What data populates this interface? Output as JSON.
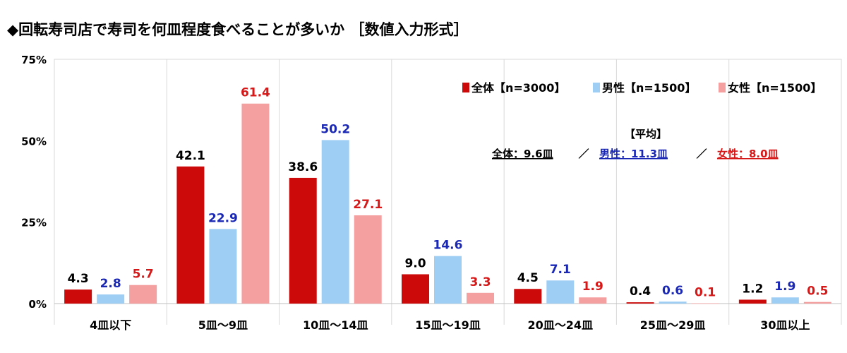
{
  "title": "◆回転寿司店で寿司を何皿程度食べることが多いか ［数値入力形式］",
  "chart_data": {
    "type": "bar",
    "categories": [
      "4皿以下",
      "5皿～9皿",
      "10皿～14皿",
      "15皿～19皿",
      "20皿～24皿",
      "25皿～29皿",
      "30皿以上"
    ],
    "series": [
      {
        "name": "全体【n=3000】",
        "color": "#cc0a0a",
        "label_color": "#000000",
        "values": [
          4.3,
          42.1,
          38.6,
          9.0,
          4.5,
          0.4,
          1.2
        ]
      },
      {
        "name": "男性【n=1500】",
        "color": "#9fcef5",
        "label_color": "#1a28b4",
        "values": [
          2.8,
          22.9,
          50.2,
          14.6,
          7.1,
          0.6,
          1.9
        ]
      },
      {
        "name": "女性【n=1500】",
        "color": "#f5a0a0",
        "label_color": "#d61818",
        "values": [
          5.7,
          61.4,
          27.1,
          3.3,
          1.9,
          0.1,
          0.5
        ]
      }
    ],
    "yticks": [
      "0%",
      "25%",
      "50%",
      "75%"
    ],
    "ylim": [
      0,
      75
    ],
    "grid": "vertical separators",
    "legend_position": "top-right"
  },
  "average": {
    "heading": "【平均】",
    "items": [
      {
        "text": "全体：9.6皿",
        "color": "#000000"
      },
      {
        "text": "男性：11.3皿",
        "color": "#1a28b4"
      },
      {
        "text": "女性：8.0皿",
        "color": "#d61818"
      }
    ],
    "separator": "／"
  }
}
